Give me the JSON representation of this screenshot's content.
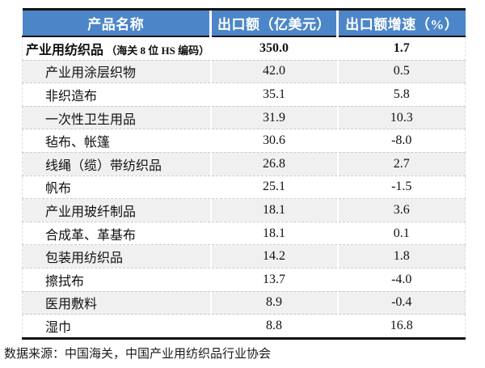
{
  "colors": {
    "header_bg": "#4d86c8",
    "header_text": "#ffffff",
    "row_bg": "#ffffff",
    "row_alt_bg": "#f0f0f0",
    "border_dark": "#121212",
    "row_divider": "#cccccc"
  },
  "chart_data": {
    "type": "table",
    "columns": [
      "产品名称",
      "出口额（亿美元）",
      "出口额增速（%）"
    ],
    "rows": [
      {
        "name": "产业用纺织品",
        "note": "（海关 8 位 HS 编码）",
        "export": "350.0",
        "growth": "1.7",
        "bold": true,
        "indent": false
      },
      {
        "name": "产业用涂层织物",
        "export": "42.0",
        "growth": "0.5"
      },
      {
        "name": "非织造布",
        "export": "35.1",
        "growth": "5.8"
      },
      {
        "name": "一次性卫生用品",
        "export": "31.9",
        "growth": "10.3"
      },
      {
        "name": "毡布、帐篷",
        "export": "30.6",
        "growth": "-8.0"
      },
      {
        "name": "线绳（缆）带纺织品",
        "export": "26.8",
        "growth": "2.7"
      },
      {
        "name": "帆布",
        "export": "25.1",
        "growth": "-1.5"
      },
      {
        "name": "产业用玻纤制品",
        "export": "18.1",
        "growth": "3.6"
      },
      {
        "name": "合成革、革基布",
        "export": "18.1",
        "growth": "0.1"
      },
      {
        "name": "包装用纺织品",
        "export": "14.2",
        "growth": "1.8"
      },
      {
        "name": "擦拭布",
        "export": "13.7",
        "growth": "-4.0"
      },
      {
        "name": "医用敷料",
        "export": "8.9",
        "growth": "-0.4"
      },
      {
        "name": "湿巾",
        "export": "8.8",
        "growth": "16.8"
      }
    ],
    "source": "数据来源：中国海关，中国产业用纺织品行业协会",
    "layout": {
      "grid": "dashed-row-dividers",
      "header_style": "blue-banner",
      "alternating_rows": true
    }
  }
}
